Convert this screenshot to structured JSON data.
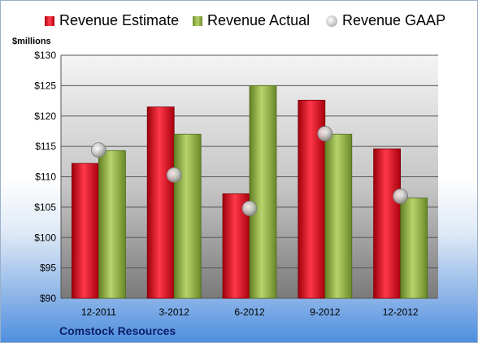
{
  "chart_data": {
    "type": "bar",
    "title": "",
    "company": "Comstock Resources",
    "ylabel": "$millions",
    "xlabel": "",
    "ylim": [
      90,
      130
    ],
    "yticks": [
      90,
      95,
      100,
      105,
      110,
      115,
      120,
      125,
      130
    ],
    "ytick_labels": [
      "$90",
      "$95",
      "$100",
      "$105",
      "$110",
      "$115",
      "$120",
      "$125",
      "$130"
    ],
    "categories": [
      "12-2011",
      "3-2012",
      "6-2012",
      "9-2012",
      "12-2012"
    ],
    "legend_position": "top",
    "grid": true,
    "series": [
      {
        "name": "Revenue Estimate",
        "type": "bar",
        "color": "#e0202e",
        "values": [
          112.2,
          121.5,
          107.2,
          122.6,
          114.6
        ]
      },
      {
        "name": "Revenue Actual",
        "type": "bar",
        "color": "#9bbb59",
        "values": [
          114.3,
          117.0,
          125.0,
          117.0,
          106.5
        ]
      },
      {
        "name": "Revenue GAAP",
        "type": "marker",
        "color": "#c0c0c0",
        "values": [
          114.4,
          110.3,
          104.8,
          117.1,
          106.8
        ]
      }
    ]
  }
}
